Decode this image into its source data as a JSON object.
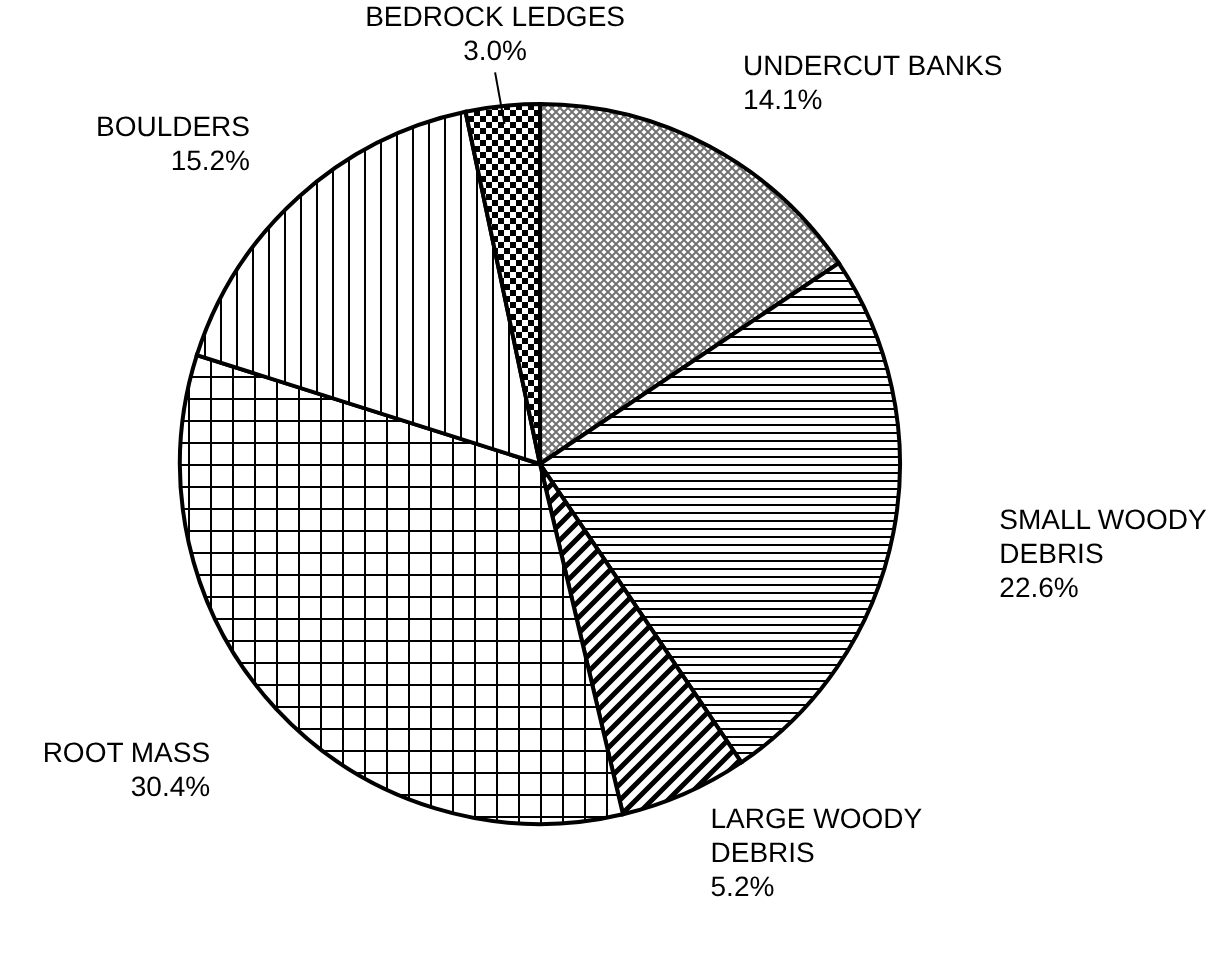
{
  "chart_data": {
    "type": "pie",
    "categories": [
      "UNDERCUT BANKS",
      "SMALL WOODY DEBRIS",
      "LARGE WOODY DEBRIS",
      "ROOT MASS",
      "BOULDERS",
      "BEDROCK LEDGES"
    ],
    "values": [
      14.1,
      22.6,
      5.2,
      30.4,
      15.2,
      3.0
    ],
    "colors": [
      "#000000",
      "#000000",
      "#000000",
      "#000000",
      "#000000",
      "#000000"
    ],
    "value_labels": [
      "14.1%",
      "22.6%",
      "5.2%",
      "30.4%",
      "15.2%",
      "3.0%"
    ]
  }
}
